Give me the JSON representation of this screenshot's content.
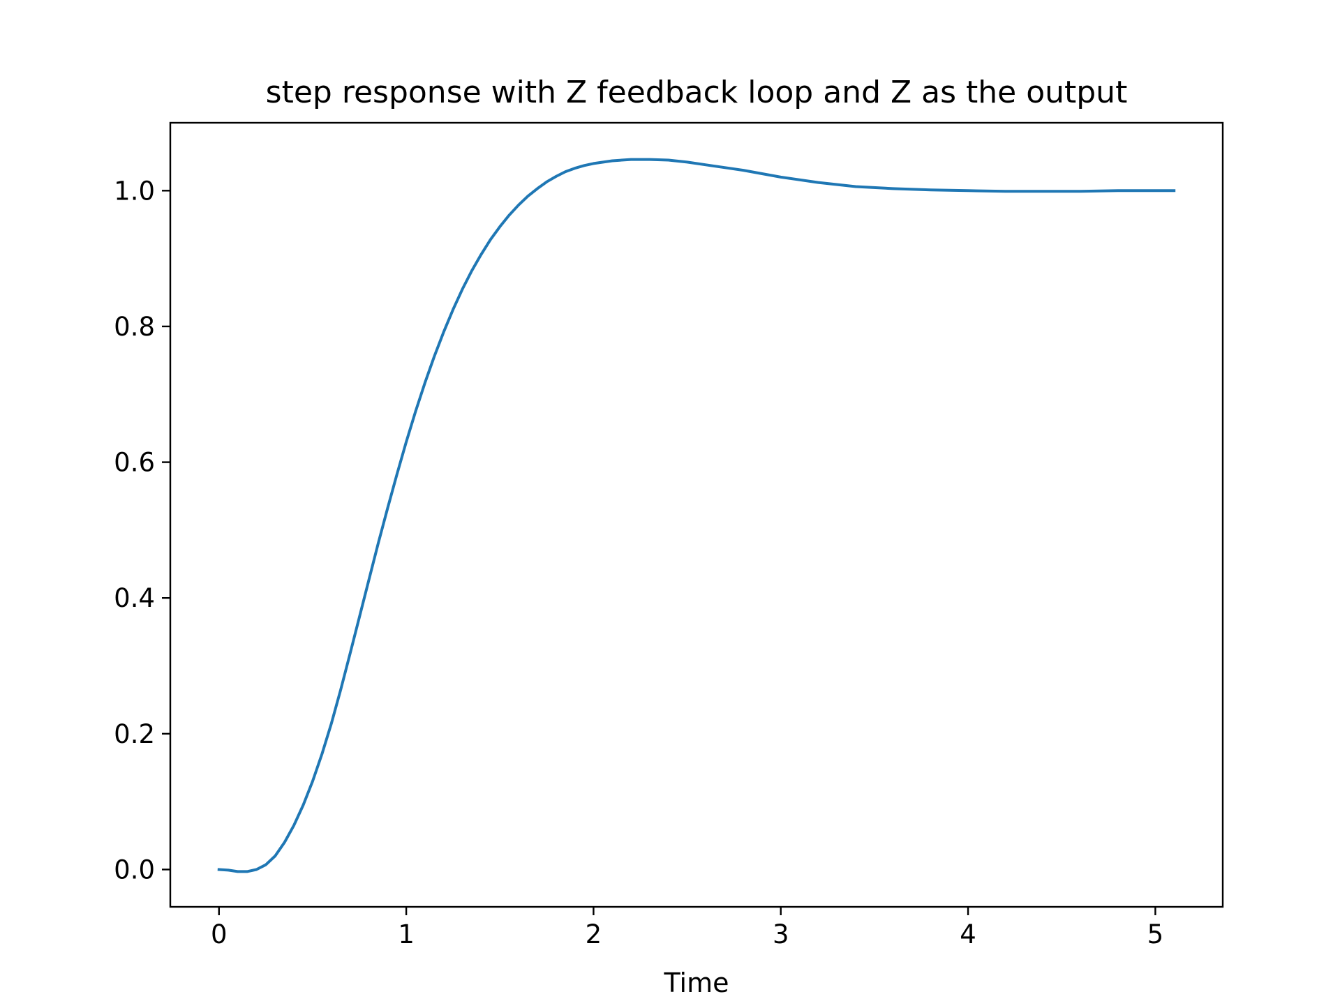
{
  "chart_data": {
    "type": "line",
    "title": "step response with Z feedback loop and Z as the output",
    "xlabel": "Time",
    "ylabel": "",
    "xlim": [
      -0.26,
      5.36
    ],
    "ylim": [
      -0.055,
      1.1
    ],
    "xticks": [
      0,
      1,
      2,
      3,
      4,
      5
    ],
    "xtick_labels": [
      "0",
      "1",
      "2",
      "3",
      "4",
      "5"
    ],
    "yticks": [
      0.0,
      0.2,
      0.4,
      0.6,
      0.8,
      1.0
    ],
    "ytick_labels": [
      "0.0",
      "0.2",
      "0.4",
      "0.6",
      "0.8",
      "1.0"
    ],
    "grid": false,
    "legend": "none",
    "line_color": "#1f77b4",
    "series": [
      {
        "x": [
          0,
          0.05,
          0.1,
          0.15,
          0.2,
          0.25,
          0.3,
          0.35,
          0.4,
          0.45,
          0.5,
          0.55,
          0.6,
          0.65,
          0.7,
          0.75,
          0.8,
          0.85,
          0.9,
          0.95,
          1.0,
          1.05,
          1.1,
          1.15,
          1.2,
          1.25,
          1.3,
          1.35,
          1.4,
          1.45,
          1.5,
          1.55,
          1.6,
          1.65,
          1.7,
          1.75,
          1.8,
          1.85,
          1.9,
          1.95,
          2.0,
          2.1,
          2.2,
          2.3,
          2.4,
          2.5,
          2.6,
          2.7,
          2.8,
          2.9,
          3.0,
          3.2,
          3.4,
          3.6,
          3.8,
          4.0,
          4.2,
          4.4,
          4.6,
          4.8,
          5.0,
          5.1
        ],
        "values": [
          0.0,
          -0.001,
          -0.003,
          -0.003,
          0.0,
          0.007,
          0.02,
          0.04,
          0.065,
          0.095,
          0.13,
          0.17,
          0.215,
          0.265,
          0.318,
          0.372,
          0.426,
          0.48,
          0.532,
          0.582,
          0.63,
          0.675,
          0.717,
          0.756,
          0.792,
          0.825,
          0.855,
          0.882,
          0.906,
          0.928,
          0.947,
          0.964,
          0.979,
          0.992,
          1.003,
          1.013,
          1.021,
          1.028,
          1.033,
          1.037,
          1.04,
          1.044,
          1.046,
          1.046,
          1.045,
          1.042,
          1.038,
          1.034,
          1.03,
          1.025,
          1.02,
          1.012,
          1.006,
          1.003,
          1.001,
          1.0,
          0.999,
          0.999,
          0.999,
          1.0,
          1.0,
          1.0
        ]
      }
    ]
  }
}
